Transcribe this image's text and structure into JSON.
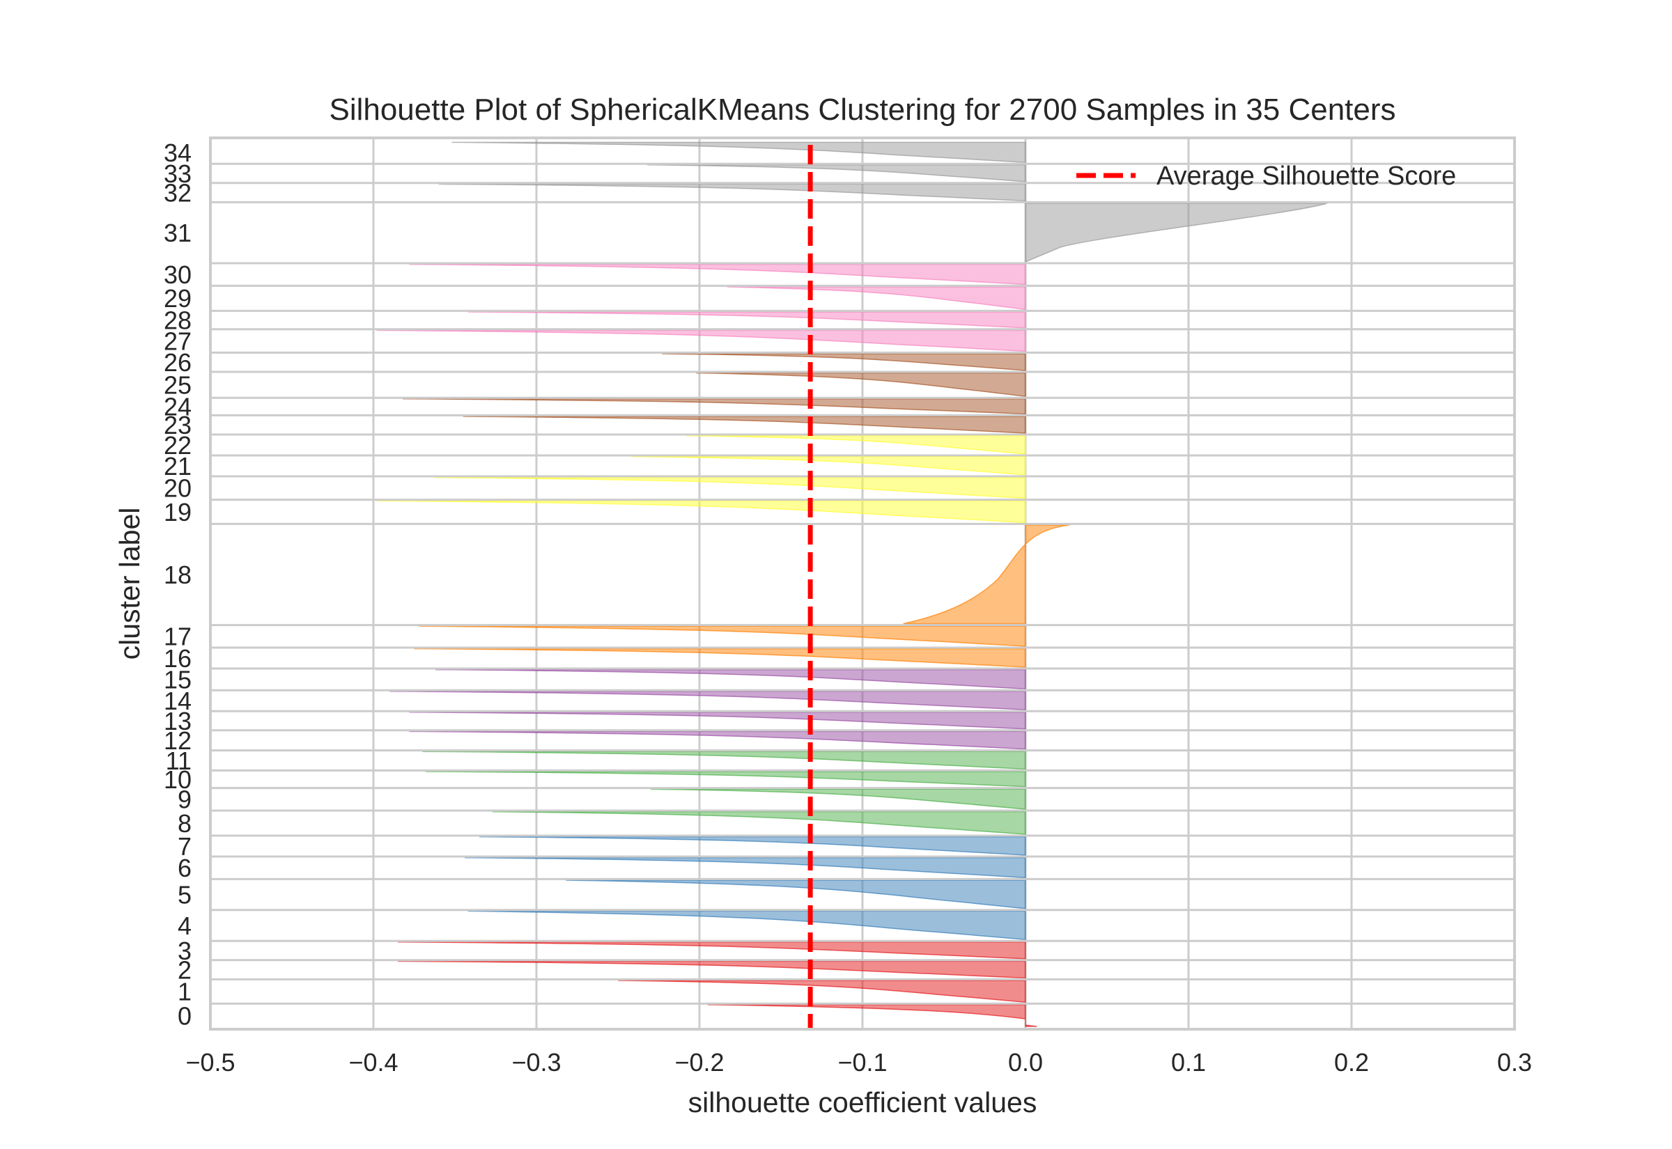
{
  "chart_data": {
    "type": "area",
    "title": "Silhouette Plot of SphericalKMeans Clustering for 2700 Samples in 35 Centers",
    "xlabel": "silhouette coefficient values",
    "ylabel": "cluster label",
    "xlim": [
      -0.5,
      0.3
    ],
    "x_ticks": [
      "−0.5",
      "−0.4",
      "−0.3",
      "−0.2",
      "−0.1",
      "0.0",
      "0.1",
      "0.2",
      "0.3"
    ],
    "grid": true,
    "legend": {
      "placement": "top-right",
      "entries": [
        "Average Silhouette Score"
      ]
    },
    "average_silhouette_score": -0.132,
    "clusters": [
      {
        "label": "0",
        "color": "#e41a1c",
        "min": -0.195,
        "max": 0.007,
        "y0": 0,
        "y1": 0.026
      },
      {
        "label": "1",
        "color": "#e41a1c",
        "min": -0.25,
        "max": 0.0,
        "y0": 0.029,
        "y1": 0.055
      },
      {
        "label": "2",
        "color": "#e41a1c",
        "min": -0.385,
        "max": 0.0,
        "y0": 0.058,
        "y1": 0.078
      },
      {
        "label": "3",
        "color": "#e41a1c",
        "min": -0.385,
        "max": 0.0,
        "y0": 0.081,
        "y1": 0.101
      },
      {
        "label": "4",
        "color": "#377eb8",
        "min": -0.342,
        "max": 0.0,
        "y0": 0.104,
        "y1": 0.138
      },
      {
        "label": "5",
        "color": "#377eb8",
        "min": -0.282,
        "max": 0.0,
        "y0": 0.141,
        "y1": 0.175
      },
      {
        "label": "6",
        "color": "#377eb8",
        "min": -0.344,
        "max": 0.0,
        "y0": 0.178,
        "y1": 0.202
      },
      {
        "label": "7",
        "color": "#377eb8",
        "min": -0.335,
        "max": 0.0,
        "y0": 0.205,
        "y1": 0.227
      },
      {
        "label": "8",
        "color": "#4daf4a",
        "min": -0.327,
        "max": 0.0,
        "y0": 0.23,
        "y1": 0.257
      },
      {
        "label": "9",
        "color": "#4daf4a",
        "min": -0.23,
        "max": 0.0,
        "y0": 0.26,
        "y1": 0.284
      },
      {
        "label": "10",
        "color": "#4daf4a",
        "min": -0.368,
        "max": 0.0,
        "y0": 0.287,
        "y1": 0.305
      },
      {
        "label": "11",
        "color": "#4daf4a",
        "min": -0.37,
        "max": 0.0,
        "y0": 0.308,
        "y1": 0.329
      },
      {
        "label": "12",
        "color": "#984ea3",
        "min": -0.378,
        "max": 0.0,
        "y0": 0.332,
        "y1": 0.353
      },
      {
        "label": "13",
        "color": "#984ea3",
        "min": -0.378,
        "max": 0.0,
        "y0": 0.356,
        "y1": 0.376
      },
      {
        "label": "14",
        "color": "#984ea3",
        "min": -0.39,
        "max": 0.0,
        "y0": 0.379,
        "y1": 0.401
      },
      {
        "label": "15",
        "color": "#984ea3",
        "min": -0.362,
        "max": 0.0,
        "y0": 0.404,
        "y1": 0.427
      },
      {
        "label": "16",
        "color": "#ff7f00",
        "min": -0.375,
        "max": 0.0,
        "y0": 0.43,
        "y1": 0.452
      },
      {
        "label": "17",
        "color": "#ff7f00",
        "min": -0.372,
        "max": 0.0,
        "y0": 0.455,
        "y1": 0.479
      },
      {
        "label": "18",
        "color": "#ff7f00",
        "min": -0.075,
        "max": 0.027,
        "y0": 0.482,
        "y1": 0.6
      },
      {
        "label": "19",
        "color": "#ffff33",
        "min": -0.398,
        "max": 0.0,
        "y0": 0.603,
        "y1": 0.629
      },
      {
        "label": "20",
        "color": "#ffff33",
        "min": -0.363,
        "max": 0.0,
        "y0": 0.632,
        "y1": 0.657
      },
      {
        "label": "21",
        "color": "#ffff33",
        "min": -0.242,
        "max": 0.0,
        "y0": 0.66,
        "y1": 0.682
      },
      {
        "label": "22",
        "color": "#ffff33",
        "min": -0.208,
        "max": 0.0,
        "y0": 0.685,
        "y1": 0.707
      },
      {
        "label": "23",
        "color": "#a65628",
        "min": -0.345,
        "max": 0.0,
        "y0": 0.71,
        "y1": 0.73
      },
      {
        "label": "24",
        "color": "#a65628",
        "min": -0.382,
        "max": 0.0,
        "y0": 0.733,
        "y1": 0.751
      },
      {
        "label": "25",
        "color": "#a65628",
        "min": -0.202,
        "max": 0.0,
        "y0": 0.754,
        "y1": 0.782
      },
      {
        "label": "26",
        "color": "#a65628",
        "min": -0.223,
        "max": 0.0,
        "y0": 0.785,
        "y1": 0.805
      },
      {
        "label": "27",
        "color": "#f781bf",
        "min": -0.398,
        "max": 0.0,
        "y0": 0.808,
        "y1": 0.833
      },
      {
        "label": "28",
        "color": "#f781bf",
        "min": -0.342,
        "max": 0.0,
        "y0": 0.836,
        "y1": 0.855
      },
      {
        "label": "29",
        "color": "#f781bf",
        "min": -0.183,
        "max": 0.0,
        "y0": 0.858,
        "y1": 0.885
      },
      {
        "label": "30",
        "color": "#f781bf",
        "min": -0.378,
        "max": 0.0,
        "y0": 0.888,
        "y1": 0.912
      },
      {
        "label": "31",
        "color": "#999999",
        "min": 0.0,
        "max": 0.185,
        "y0": 0.915,
        "y1": 0.985
      },
      {
        "label": "32",
        "color": "#999999",
        "min": -0.36,
        "max": 0.0,
        "y0": 0.988,
        "y1": 1.008
      },
      {
        "label": "33",
        "color": "#999999",
        "min": -0.232,
        "max": 0.0,
        "y0": 1.011,
        "y1": 1.031
      },
      {
        "label": "34",
        "color": "#999999",
        "min": -0.352,
        "max": 0.0,
        "y0": 1.034,
        "y1": 1.058
      }
    ]
  }
}
